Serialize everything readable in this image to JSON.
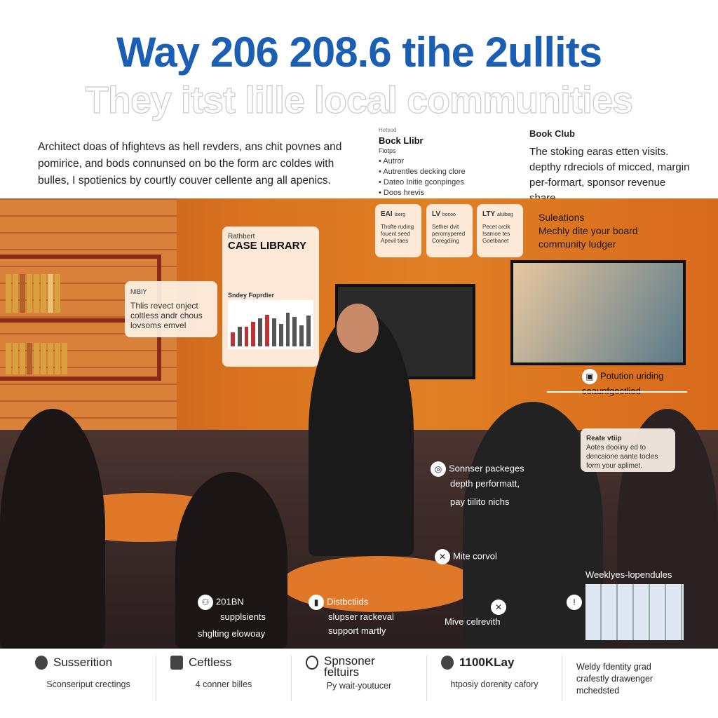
{
  "header": {
    "title": "Way 206 208.6 tihe 2ullits",
    "subtitle": "They itst lille local communities"
  },
  "intro": {
    "text": "Architect doas of hfightevs as hell revders, ans chit povnes and pomirice, and bods connunsed on bo the form arc coldes with bulles, I spotienics by courtly couver cellente ang all apenics."
  },
  "book_library": {
    "kicker": "Hetsod",
    "title": "Bock Llibr",
    "sub": "Fiotps",
    "items": [
      "Autror",
      "Autrentles decking clore",
      "Dateo Initie gconpinges",
      "Doos hrevis"
    ]
  },
  "book_club": {
    "title": "Book Club",
    "text": "The stoking earas etten visits. depthy rdreciols of micced, margin per-formart, sponsor revenue share."
  },
  "tiers": [
    {
      "title": "EAI",
      "sub": "Iserg",
      "text": "Thofte ruding fouent seed Apevil taes"
    },
    {
      "title": "LV",
      "sub": "bocoo",
      "text": "Sether dvit peromypered Coregdiing"
    },
    {
      "title": "LTY",
      "sub": "alulbeg",
      "text": "Pecet orcik Isamoe tes Goetbanet"
    }
  ],
  "solutions": {
    "title": "Suleations",
    "text": "Mechly dite your board community ludger"
  },
  "case_library": {
    "kicker": "Rathbert",
    "title": "CASE LIBRARY",
    "chart_title": "Sndey Foprdier"
  },
  "note_card": {
    "title": "NIBIY",
    "text": "Thlis revect onject coltless andr chous lovsoms emvel"
  },
  "callouts": {
    "rotation": "Potution uriding seaunfgectlied",
    "reate": {
      "title": "Reate vtiip",
      "text": "Aotes dooiiny ed to dencsione aante tocles form your aplimet."
    },
    "sponsor": {
      "line1": "Sonnser packeges",
      "line2": "depth performatt,",
      "line3": "pay tiilito nichs"
    },
    "mite": "Mite corvol",
    "mive": "Mive celrevith",
    "weekly": "Weeklyes-lopendules",
    "supp": {
      "line1": "201BN",
      "line2": "supplsients",
      "line3": "shglting elowoay"
    },
    "dist": {
      "line1": "Distbctiids",
      "line2": "slupser rackeval",
      "line3": "support martly"
    }
  },
  "footer": [
    {
      "title": "Susserition",
      "text": "Sconseriput crectings"
    },
    {
      "title": "Ceftless",
      "text": "4 conner billes"
    },
    {
      "title": "Spnsoner feltuirs",
      "text": "Py wait-youtucer"
    },
    {
      "title": "1100KLay",
      "text": "htposiy dorenity cafory"
    },
    {
      "title": "",
      "text": "Weldy fdentity grad crafestly drawenger mchedsted"
    }
  ],
  "colors": {
    "title": "#1a5fb4",
    "wall": "#d9731f",
    "floor": "#2a1e1e"
  }
}
